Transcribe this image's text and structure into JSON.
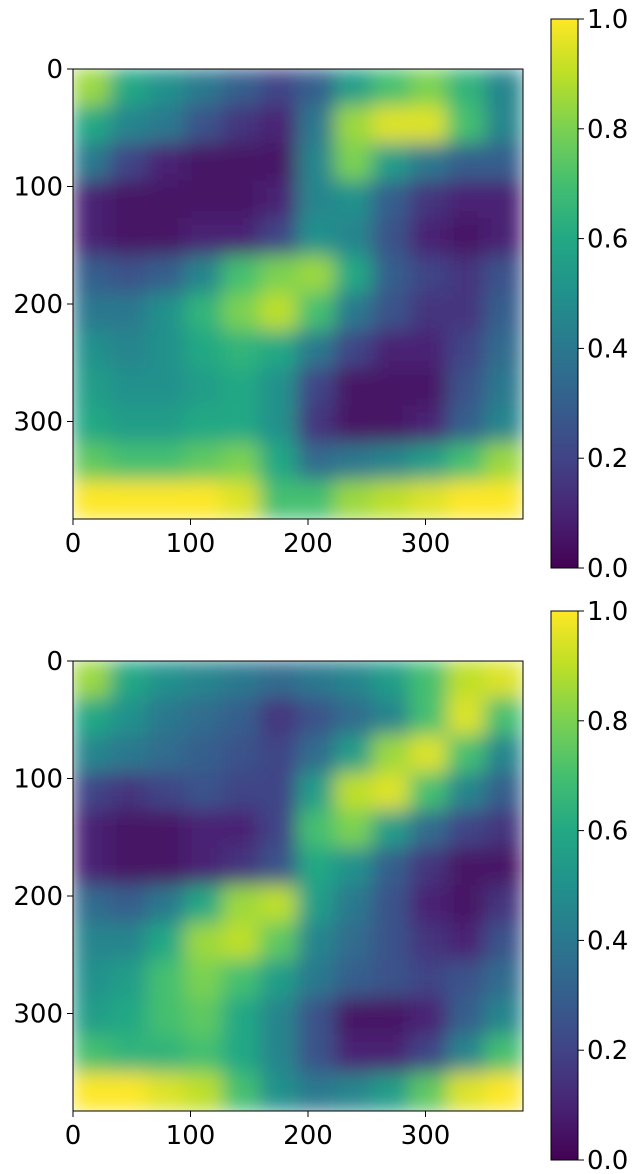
{
  "chart_data": [
    {
      "type": "heatmap",
      "title": "",
      "xlabel": "",
      "ylabel": "",
      "xlim": [
        0,
        383
      ],
      "ylim": [
        383,
        0
      ],
      "x_ticks": [
        "0",
        "100",
        "200",
        "300"
      ],
      "y_ticks": [
        "0",
        "100",
        "200",
        "300"
      ],
      "colorbar": {
        "range": [
          0.0,
          1.0
        ],
        "ticks": [
          "0.0",
          "0.2",
          "0.4",
          "0.6",
          "0.8",
          "1.0"
        ]
      },
      "colormap": "viridis",
      "grid": false,
      "values": [
        [
          0.85,
          0.6,
          0.5,
          0.4,
          0.3,
          0.2,
          0.3,
          0.55,
          0.7,
          0.8,
          0.65,
          0.45
        ],
        [
          0.6,
          0.45,
          0.4,
          0.25,
          0.15,
          0.1,
          0.4,
          0.85,
          0.95,
          0.95,
          0.7,
          0.45
        ],
        [
          0.4,
          0.2,
          0.1,
          0.05,
          0.05,
          0.05,
          0.45,
          0.8,
          0.55,
          0.4,
          0.3,
          0.3
        ],
        [
          0.1,
          0.05,
          0.05,
          0.05,
          0.05,
          0.1,
          0.45,
          0.5,
          0.3,
          0.15,
          0.1,
          0.1
        ],
        [
          0.1,
          0.05,
          0.05,
          0.1,
          0.1,
          0.2,
          0.5,
          0.45,
          0.25,
          0.1,
          0.05,
          0.1
        ],
        [
          0.3,
          0.25,
          0.3,
          0.45,
          0.7,
          0.8,
          0.85,
          0.6,
          0.3,
          0.2,
          0.15,
          0.25
        ],
        [
          0.4,
          0.4,
          0.5,
          0.65,
          0.8,
          0.9,
          0.7,
          0.4,
          0.25,
          0.15,
          0.15,
          0.3
        ],
        [
          0.5,
          0.45,
          0.5,
          0.6,
          0.65,
          0.6,
          0.4,
          0.2,
          0.1,
          0.1,
          0.2,
          0.35
        ],
        [
          0.55,
          0.5,
          0.5,
          0.55,
          0.6,
          0.5,
          0.2,
          0.05,
          0.05,
          0.05,
          0.25,
          0.4
        ],
        [
          0.6,
          0.55,
          0.55,
          0.6,
          0.6,
          0.5,
          0.15,
          0.05,
          0.05,
          0.1,
          0.3,
          0.45
        ],
        [
          0.75,
          0.7,
          0.7,
          0.75,
          0.8,
          0.6,
          0.35,
          0.4,
          0.45,
          0.55,
          0.7,
          0.85
        ],
        [
          1.0,
          1.0,
          1.0,
          1.0,
          0.95,
          0.7,
          0.7,
          0.85,
          0.9,
          0.95,
          1.0,
          1.0
        ]
      ]
    },
    {
      "type": "heatmap",
      "title": "",
      "xlabel": "",
      "ylabel": "",
      "xlim": [
        0,
        383
      ],
      "ylim": [
        383,
        0
      ],
      "x_ticks": [
        "0",
        "100",
        "200",
        "300"
      ],
      "y_ticks": [
        "0",
        "100",
        "200",
        "300"
      ],
      "colorbar": {
        "range": [
          0.0,
          1.0
        ],
        "ticks": [
          "0.0",
          "0.2",
          "0.4",
          "0.6",
          "0.8",
          "1.0"
        ]
      },
      "colormap": "viridis",
      "grid": false,
      "values": [
        [
          0.85,
          0.6,
          0.5,
          0.45,
          0.4,
          0.35,
          0.4,
          0.45,
          0.55,
          0.7,
          0.9,
          0.95
        ],
        [
          0.6,
          0.5,
          0.4,
          0.35,
          0.3,
          0.15,
          0.25,
          0.35,
          0.45,
          0.7,
          0.95,
          0.7
        ],
        [
          0.45,
          0.4,
          0.35,
          0.3,
          0.25,
          0.2,
          0.35,
          0.55,
          0.85,
          0.95,
          0.7,
          0.45
        ],
        [
          0.2,
          0.15,
          0.2,
          0.25,
          0.2,
          0.2,
          0.55,
          0.9,
          0.95,
          0.7,
          0.45,
          0.3
        ],
        [
          0.1,
          0.05,
          0.05,
          0.1,
          0.1,
          0.2,
          0.7,
          0.8,
          0.55,
          0.35,
          0.2,
          0.15
        ],
        [
          0.1,
          0.05,
          0.05,
          0.1,
          0.15,
          0.25,
          0.6,
          0.5,
          0.3,
          0.15,
          0.05,
          0.05
        ],
        [
          0.35,
          0.3,
          0.4,
          0.6,
          0.85,
          0.9,
          0.55,
          0.4,
          0.25,
          0.1,
          0.05,
          0.15
        ],
        [
          0.45,
          0.45,
          0.6,
          0.85,
          0.9,
          0.75,
          0.45,
          0.35,
          0.25,
          0.15,
          0.1,
          0.25
        ],
        [
          0.5,
          0.55,
          0.7,
          0.8,
          0.7,
          0.55,
          0.4,
          0.3,
          0.25,
          0.2,
          0.25,
          0.35
        ],
        [
          0.55,
          0.6,
          0.7,
          0.75,
          0.6,
          0.45,
          0.25,
          0.05,
          0.05,
          0.1,
          0.3,
          0.45
        ],
        [
          0.7,
          0.65,
          0.65,
          0.7,
          0.6,
          0.45,
          0.25,
          0.1,
          0.1,
          0.2,
          0.45,
          0.7
        ],
        [
          1.0,
          1.0,
          0.95,
          0.9,
          0.7,
          0.5,
          0.4,
          0.45,
          0.55,
          0.75,
          0.95,
          1.0
        ]
      ]
    }
  ]
}
